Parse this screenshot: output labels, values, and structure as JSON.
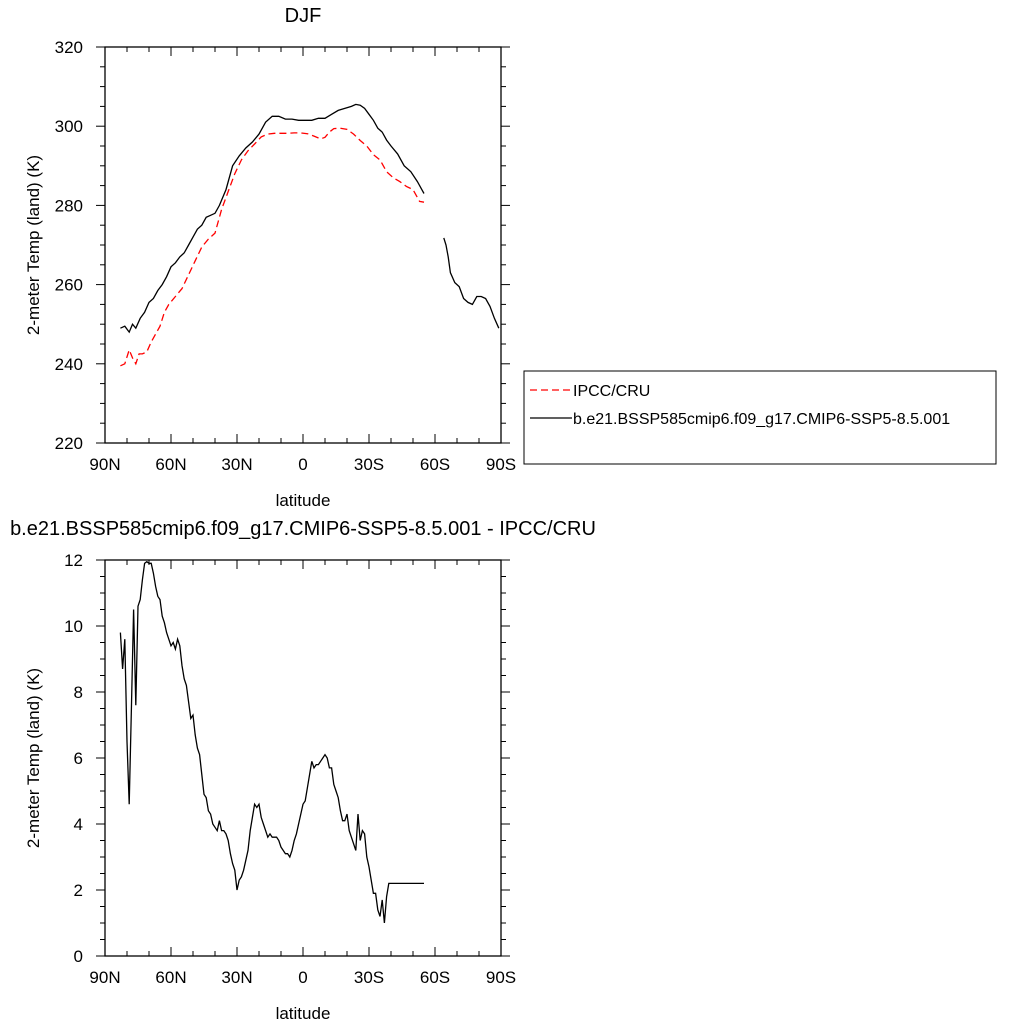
{
  "chart_data": [
    {
      "type": "line",
      "title": "DJF",
      "xlabel": "latitude",
      "ylabel": "2-meter Temp (land) (K)",
      "xlim": [
        90,
        -90
      ],
      "ylim": [
        220,
        320
      ],
      "x_ticks": [
        90,
        60,
        30,
        0,
        -30,
        -60,
        -90
      ],
      "x_tick_labels": [
        "90N",
        "60N",
        "30N",
        "0",
        "30S",
        "60S",
        "90S"
      ],
      "y_ticks": [
        220,
        240,
        260,
        280,
        300,
        320
      ],
      "y_tick_labels": [
        "220",
        "240",
        "260",
        "280",
        "300",
        "320"
      ],
      "legend_position": "outside-right",
      "series": [
        {
          "name": "IPCC/CRU",
          "color": "#ff0000",
          "dash": "dashed",
          "x": [
            83,
            81,
            79,
            77.5,
            76,
            74.5,
            73,
            71,
            69,
            67,
            65,
            63,
            61,
            58,
            55,
            52,
            49,
            46,
            43,
            40,
            37,
            34,
            31,
            28,
            25,
            22,
            19,
            16,
            13,
            10,
            7,
            4,
            1,
            -2,
            -5,
            -8,
            -10,
            -12,
            -14,
            -17,
            -20,
            -23,
            -26,
            -29,
            -32,
            -35,
            -38,
            -41,
            -44,
            -47,
            -50,
            -53,
            -55
          ],
          "y": [
            239.5,
            240.0,
            243.5,
            241.5,
            240.0,
            242.5,
            242.5,
            243.0,
            245.5,
            247.5,
            249.5,
            253.0,
            255.0,
            257.0,
            259.0,
            262.5,
            266.0,
            269.5,
            271.5,
            273.0,
            279.0,
            283.5,
            288.0,
            291.5,
            293.8,
            295.5,
            297.3,
            298.0,
            298.2,
            298.2,
            298.2,
            298.3,
            298.3,
            298.1,
            297.5,
            296.8,
            297.2,
            298.5,
            299.4,
            299.5,
            299.2,
            298.0,
            296.4,
            295.0,
            292.8,
            291.5,
            288.5,
            287.0,
            286.0,
            284.8,
            284.0,
            281.0,
            280.8
          ]
        },
        {
          "name": "b.e21.BSSP585cmip6.f09_g17.CMIP6-SSP5-8.5.001",
          "color": "#000000",
          "dash": "solid",
          "segments": [
            {
              "x": [
                83,
                81,
                79,
                77.5,
                76,
                74,
                72,
                70,
                68,
                66,
                64,
                62,
                60,
                58,
                56,
                54,
                52,
                50,
                48,
                46,
                44,
                42,
                40,
                38,
                35,
                32,
                29,
                26,
                23,
                20,
                17,
                14,
                11,
                8,
                5,
                2,
                -1,
                -4,
                -7,
                -10,
                -13,
                -16,
                -19,
                -22,
                -24,
                -26,
                -28,
                -30,
                -32,
                -34,
                -36,
                -38,
                -40,
                -43,
                -46,
                -49,
                -52,
                -54,
                -55
              ],
              "y": [
                249.0,
                249.5,
                248.0,
                250.0,
                249.0,
                251.5,
                253.0,
                255.5,
                256.5,
                258.5,
                260.0,
                262.0,
                264.5,
                265.5,
                267.0,
                268.0,
                270.0,
                272.0,
                274.0,
                275.0,
                277.0,
                277.5,
                278.0,
                280.0,
                284.0,
                290.0,
                292.5,
                294.5,
                296.0,
                298.0,
                301.0,
                302.5,
                302.5,
                301.8,
                301.8,
                301.5,
                301.5,
                301.5,
                302.0,
                302.0,
                303.0,
                304.0,
                304.5,
                305.0,
                305.5,
                305.3,
                304.5,
                303.0,
                301.5,
                299.5,
                298.5,
                296.5,
                295.0,
                293.0,
                290.0,
                288.5,
                286.0,
                284.0,
                283.0
              ]
            },
            {
              "x": [
                -64,
                -65,
                -66,
                -67,
                -69,
                -71,
                -73,
                -75,
                -77,
                -79,
                -81,
                -83,
                -85,
                -87,
                -89
              ],
              "y": [
                271.8,
                270.0,
                267.0,
                263.0,
                260.5,
                259.5,
                256.5,
                255.5,
                255.0,
                257.0,
                257.0,
                256.5,
                254.5,
                251.5,
                249.0
              ]
            }
          ]
        }
      ]
    },
    {
      "type": "line",
      "title": "b.e21.BSSP585cmip6.f09_g17.CMIP6-SSP5-8.5.001 - IPCC/CRU",
      "xlabel": "latitude",
      "ylabel": "2-meter Temp (land) (K)",
      "xlim": [
        90,
        -90
      ],
      "ylim": [
        0,
        12
      ],
      "x_ticks": [
        90,
        60,
        30,
        0,
        -30,
        -60,
        -90
      ],
      "x_tick_labels": [
        "90N",
        "60N",
        "30N",
        "0",
        "30S",
        "60S",
        "90S"
      ],
      "y_ticks": [
        0,
        2,
        4,
        6,
        8,
        10,
        12
      ],
      "y_tick_labels": [
        "0",
        "2",
        "4",
        "6",
        "8",
        "10",
        "12"
      ],
      "series": [
        {
          "color": "#000000",
          "dash": "solid",
          "x": [
            83,
            82,
            81,
            80,
            79,
            78,
            77,
            76,
            75,
            74,
            73,
            72,
            71,
            70,
            69,
            68,
            67,
            66,
            65,
            64,
            63,
            62,
            61,
            60,
            59,
            58,
            57,
            56,
            55,
            54,
            53,
            52,
            51,
            50,
            49,
            48,
            47,
            46,
            45,
            44,
            43,
            42,
            41,
            40,
            39,
            38,
            37,
            36,
            35,
            34,
            33,
            32,
            31,
            30,
            29,
            28,
            27,
            26,
            25,
            24,
            23,
            22,
            21,
            20,
            19,
            18,
            17,
            16,
            15,
            14,
            13,
            12,
            11,
            10,
            9,
            8,
            7,
            6,
            5,
            4,
            3,
            2,
            1,
            0,
            -1,
            -2,
            -3,
            -4,
            -5,
            -6,
            -7,
            -8,
            -9,
            -10,
            -11,
            -12,
            -13,
            -14,
            -15,
            -16,
            -17,
            -18,
            -19,
            -20,
            -21,
            -22,
            -23,
            -24,
            -25,
            -26,
            -27,
            -28,
            -29,
            -30,
            -31,
            -32,
            -33,
            -34,
            -35,
            -36,
            -37,
            -38,
            -39,
            -40,
            -41,
            -42,
            -43,
            -44,
            -45,
            -46,
            -47,
            -48,
            -49,
            -50,
            -51,
            -52,
            -53,
            -54,
            -55
          ],
          "y": [
            9.8,
            8.7,
            9.6,
            6.5,
            4.6,
            7.5,
            10.5,
            7.6,
            10.6,
            10.8,
            11.4,
            11.9,
            11.95,
            11.9,
            11.9,
            11.6,
            11.2,
            10.9,
            10.8,
            10.3,
            10.1,
            9.8,
            9.6,
            9.4,
            9.5,
            9.3,
            9.6,
            9.4,
            8.8,
            8.4,
            8.2,
            7.7,
            7.2,
            7.3,
            6.7,
            6.3,
            6.1,
            5.5,
            4.9,
            4.8,
            4.4,
            4.3,
            4.0,
            3.9,
            3.8,
            4.1,
            3.8,
            3.8,
            3.7,
            3.5,
            3.1,
            2.8,
            2.6,
            2.0,
            2.3,
            2.4,
            2.6,
            2.9,
            3.2,
            3.8,
            4.2,
            4.6,
            4.5,
            4.6,
            4.2,
            4.0,
            3.8,
            3.6,
            3.7,
            3.6,
            3.6,
            3.6,
            3.5,
            3.3,
            3.2,
            3.1,
            3.1,
            3.0,
            3.2,
            3.5,
            3.7,
            4.0,
            4.3,
            4.6,
            4.7,
            5.1,
            5.5,
            5.9,
            5.7,
            5.8,
            5.8,
            5.9,
            6.0,
            6.1,
            6.0,
            5.7,
            5.7,
            5.2,
            5.0,
            4.8,
            4.4,
            4.1,
            4.1,
            4.3,
            3.8,
            3.6,
            3.4,
            3.2,
            4.3,
            3.5,
            3.8,
            3.7,
            3.0,
            2.7,
            2.3,
            1.9,
            1.9,
            1.4,
            1.2,
            1.7,
            1.0,
            1.8,
            2.2,
            2.2,
            2.2,
            2.2,
            2.2,
            2.2,
            2.2,
            2.2,
            2.2,
            2.2,
            2.2,
            2.2,
            2.2,
            2.2,
            2.2,
            2.2,
            2.2
          ]
        }
      ]
    }
  ]
}
